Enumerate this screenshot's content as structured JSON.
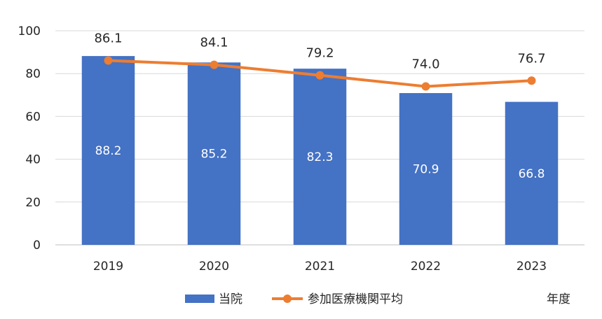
{
  "chart_data": {
    "type": "bar+line",
    "categories": [
      "2019",
      "2020",
      "2021",
      "2022",
      "2023"
    ],
    "series": [
      {
        "name": "当院",
        "type": "bar",
        "color": "#4472C4",
        "values": [
          88.2,
          85.2,
          82.3,
          70.9,
          66.8
        ],
        "labels": [
          "88.2",
          "85.2",
          "82.3",
          "70.9",
          "66.8"
        ]
      },
      {
        "name": "参加医療機関平均",
        "type": "line",
        "color": "#ED7D31",
        "values": [
          86.1,
          84.1,
          79.2,
          74.0,
          76.7
        ],
        "labels": [
          "86.1",
          "84.1",
          "79.2",
          "74.0",
          "76.7"
        ]
      }
    ],
    "ylim": [
      0,
      100
    ],
    "yticks": [
      "0",
      "20",
      "40",
      "60",
      "80",
      "100"
    ],
    "xlabel": "年度",
    "grid": true,
    "legend_position": "bottom"
  }
}
